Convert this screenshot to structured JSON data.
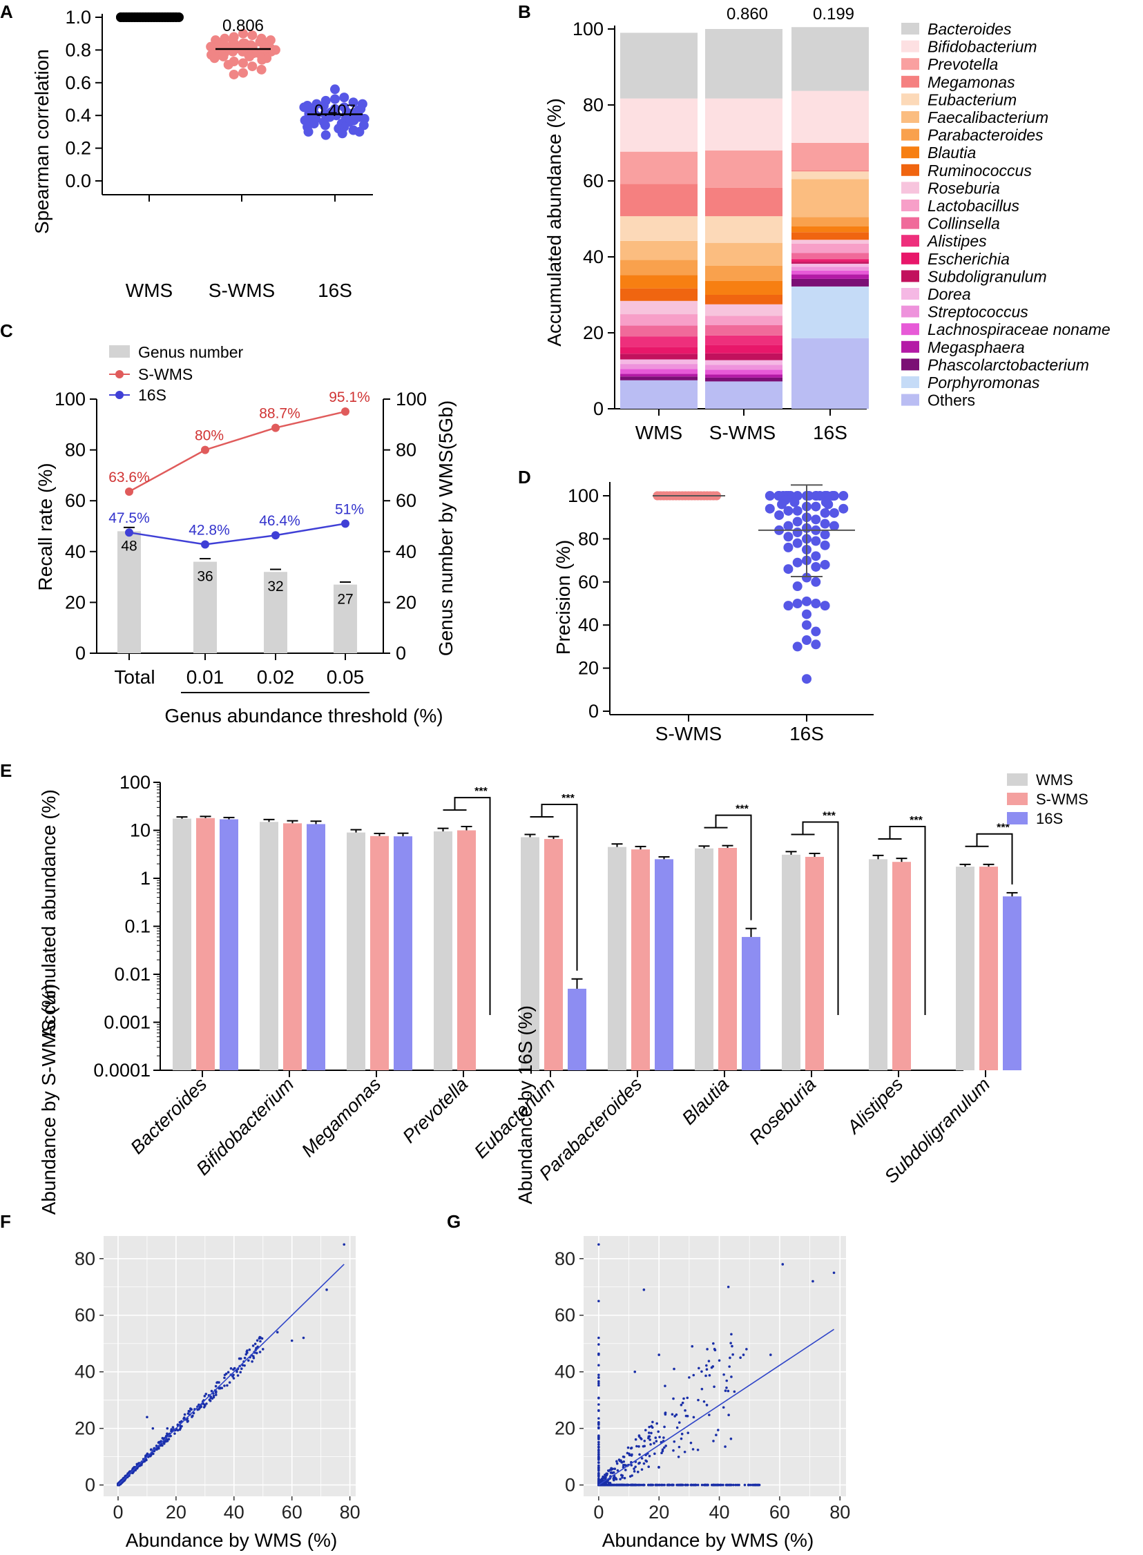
{
  "colors": {
    "wms": "#d3d3d3",
    "swms": "#f4a09f",
    "s16": "#8d8df2",
    "swms_dot": "#f08585",
    "s16_dot": "#5657e6",
    "recall_swms": "#e05b5b",
    "recall_16s": "#3f3fd6",
    "recall_swms_text": "#d03434",
    "recall_16s_text": "#3333cc",
    "scatter_dot": "#1a2fa8",
    "scatter_bg": "#e8e8e8"
  },
  "panel_labels": [
    "A",
    "B",
    "C",
    "D",
    "E",
    "F",
    "G"
  ],
  "chart_data": [
    {
      "panel": "A",
      "type": "scatter",
      "ylabel": "Spearman correlation",
      "categories": [
        "WMS",
        "S-WMS",
        "16S"
      ],
      "yticks": [
        "0.0",
        "0.2",
        "0.4",
        "0.6",
        "0.8",
        "1.0"
      ],
      "ylim": [
        0,
        1.0
      ],
      "means": [
        1.0,
        0.806,
        0.407
      ],
      "annotations": [
        "",
        "0.806",
        "0.407"
      ],
      "swms_values": [
        0.9,
        0.89,
        0.88,
        0.87,
        0.87,
        0.86,
        0.86,
        0.85,
        0.85,
        0.85,
        0.84,
        0.84,
        0.84,
        0.83,
        0.83,
        0.83,
        0.83,
        0.82,
        0.82,
        0.82,
        0.82,
        0.81,
        0.81,
        0.81,
        0.81,
        0.81,
        0.8,
        0.8,
        0.8,
        0.8,
        0.8,
        0.79,
        0.79,
        0.79,
        0.79,
        0.78,
        0.78,
        0.78,
        0.77,
        0.77,
        0.77,
        0.76,
        0.76,
        0.75,
        0.75,
        0.74,
        0.73,
        0.72,
        0.71,
        0.7,
        0.68,
        0.66,
        0.65
      ],
      "s16_values": [
        0.56,
        0.51,
        0.5,
        0.49,
        0.48,
        0.47,
        0.47,
        0.46,
        0.46,
        0.45,
        0.45,
        0.44,
        0.44,
        0.44,
        0.43,
        0.43,
        0.43,
        0.42,
        0.42,
        0.42,
        0.42,
        0.41,
        0.41,
        0.41,
        0.41,
        0.4,
        0.4,
        0.4,
        0.4,
        0.39,
        0.39,
        0.39,
        0.39,
        0.38,
        0.38,
        0.38,
        0.37,
        0.37,
        0.37,
        0.36,
        0.36,
        0.35,
        0.35,
        0.34,
        0.34,
        0.33,
        0.33,
        0.32,
        0.31,
        0.3,
        0.3,
        0.29,
        0.28
      ],
      "wms_values": [
        1,
        1,
        1,
        1,
        1,
        1,
        1,
        1,
        1,
        1,
        1,
        1,
        1,
        1,
        1,
        1,
        1,
        1,
        1,
        1,
        1,
        1,
        1,
        1,
        1,
        1,
        1,
        1,
        1,
        1,
        1,
        1,
        1,
        1,
        1,
        1,
        1,
        1,
        1,
        1,
        1,
        1,
        1
      ]
    },
    {
      "panel": "B",
      "type": "bar",
      "stacked": true,
      "ylabel": "Accumulated abundance (%)",
      "categories": [
        "WMS",
        "S-WMS",
        "16S"
      ],
      "annotations": [
        "",
        "0.860",
        "0.199"
      ],
      "yticks": [
        "0",
        "20",
        "40",
        "60",
        "80",
        "100"
      ],
      "ylim": [
        0,
        100
      ],
      "legend": [
        "Bacteroides",
        "Bifidobacterium",
        "Prevotella",
        "Megamonas",
        "Eubacterium",
        "Faecalibacterium",
        "Parabacteroides",
        "Blautia",
        "Ruminococcus",
        "Roseburia",
        "Lactobacillus",
        "Collinsella",
        "Alistipes",
        "Escherichia",
        "Subdoligranulum",
        "Dorea",
        "Streptococcus",
        "Lachnospiraceae noname",
        "Megasphaera",
        "Phascolarctobacterium",
        "Porphyromonas",
        "Others"
      ],
      "legend_italic": [
        true,
        true,
        true,
        true,
        true,
        true,
        true,
        true,
        true,
        true,
        true,
        true,
        true,
        true,
        true,
        true,
        true,
        true,
        true,
        true,
        true,
        false
      ],
      "segment_colors": [
        "#d3d3d3",
        "#fde0e2",
        "#f9a0a0",
        "#f58080",
        "#fcd9b8",
        "#fbbd80",
        "#f9a14d",
        "#f77f12",
        "#f06510",
        "#f7c4dd",
        "#f79fc8",
        "#f06a9a",
        "#ee2f7c",
        "#e8176a",
        "#c2115d",
        "#f5b8e4",
        "#ee93dc",
        "#e75ad7",
        "#b41aa6",
        "#7b0f75",
        "#c5dbf7",
        "#babdf3"
      ],
      "series_values_bottom_to_top": {
        "WMS": {
          "Others": 7.5,
          "Porphyromonas": 0,
          "Phascolarctobacterium": 1.0,
          "Megasphaera": 0.7,
          "Lachnospiraceae noname": 1.3,
          "Streptococcus": 1.3,
          "Dorea": 1.2,
          "Subdoligranulum": 1.5,
          "Escherichia": 1.8,
          "Alistipes": 2.7,
          "Collinsella": 2.9,
          "Lactobacillus": 3.0,
          "Roseburia": 3.5,
          "Ruminococcus": 3.3,
          "Blautia": 3.5,
          "Parabacteroides": 4.0,
          "Faecalibacterium": 5.0,
          "Eubacterium": 6.5,
          "Megamonas": 8.5,
          "Prevotella": 8.5,
          "Bifidobacterium": 14.0,
          "Bacteroides": 17.3
        },
        "S-WMS": {
          "Others": 7.2,
          "Porphyromonas": 0,
          "Phascolarctobacterium": 1.0,
          "Megasphaera": 0.8,
          "Lachnospiraceae noname": 1.3,
          "Streptococcus": 1.3,
          "Dorea": 1.2,
          "Subdoligranulum": 1.8,
          "Escherichia": 2.2,
          "Alistipes": 2.5,
          "Collinsella": 2.7,
          "Lactobacillus": 2.5,
          "Roseburia": 3.0,
          "Ruminococcus": 2.5,
          "Blautia": 3.7,
          "Parabacteroides": 4.0,
          "Faecalibacterium": 6.0,
          "Eubacterium": 7.0,
          "Megamonas": 7.5,
          "Prevotella": 9.8,
          "Bifidobacterium": 13.7,
          "Bacteroides": 18.3
        },
        "16S": {
          "Others": 18.6,
          "Porphyromonas": 13.6,
          "Phascolarctobacterium": 2.0,
          "Megasphaera": 1.2,
          "Lachnospiraceae noname": 1.0,
          "Streptococcus": 1.0,
          "Dorea": 0.8,
          "Subdoligranulum": 0.5,
          "Escherichia": 0.5,
          "Alistipes": 0.3,
          "Collinsella": 1.5,
          "Lactobacillus": 2.5,
          "Roseburia": 1.0,
          "Ruminococcus": 2.0,
          "Blautia": 1.5,
          "Parabacteroides": 2.5,
          "Faecalibacterium": 10.0,
          "Eubacterium": 2.0,
          "Megamonas": 0.3,
          "Prevotella": 7.2,
          "Bifidobacterium": 13.7,
          "Bacteroides": 16.8
        }
      }
    },
    {
      "panel": "C",
      "type": "line",
      "ylabel": "Recall rate (%)",
      "y2label": "Genus number by WMS(5Gb)",
      "xlabel": "Genus abundance threshold (%)",
      "categories": [
        "Total",
        "0.01",
        "0.02",
        "0.05"
      ],
      "yticks": [
        "0",
        "20",
        "40",
        "60",
        "80",
        "100"
      ],
      "ylim": [
        0,
        100
      ],
      "legend": [
        "Genus number",
        "S-WMS",
        "16S"
      ],
      "series": [
        {
          "name": "S-WMS",
          "values": [
            63.6,
            80,
            88.7,
            95.1
          ],
          "labels": [
            "63.6%",
            "80%",
            "88.7%",
            "95.1%"
          ]
        },
        {
          "name": "16S",
          "values": [
            47.5,
            42.8,
            46.4,
            51
          ],
          "labels": [
            "47.5%",
            "42.8%",
            "46.4%",
            "51%"
          ]
        }
      ],
      "bars": {
        "name": "Genus number",
        "values": [
          48,
          36,
          32,
          27
        ],
        "errors": [
          1.5,
          1.2,
          1.0,
          1.0
        ],
        "labels": [
          "48",
          "36",
          "32",
          "27"
        ]
      }
    },
    {
      "panel": "D",
      "type": "scatter",
      "ylabel": "Precision (%)",
      "categories": [
        "S-WMS",
        "16S"
      ],
      "yticks": [
        "0",
        "20",
        "40",
        "60",
        "80",
        "100"
      ],
      "ylim": [
        0,
        100
      ],
      "swms_values": [
        100,
        100,
        100,
        100,
        100,
        100,
        100,
        100,
        100,
        100,
        100,
        100,
        100,
        100,
        100,
        100,
        100,
        100,
        100,
        100,
        100,
        100,
        100,
        100,
        100,
        100,
        100,
        100,
        100,
        100,
        100,
        100,
        100,
        100,
        100,
        100,
        100,
        100,
        100,
        100
      ],
      "s16_values": [
        100,
        100,
        100,
        100,
        100,
        100,
        100,
        100,
        100,
        100,
        100,
        100,
        100,
        100,
        100,
        100,
        100,
        100,
        98,
        97,
        97,
        96,
        96,
        95,
        95,
        94,
        94,
        93,
        93,
        92,
        92,
        91,
        90,
        89,
        88,
        87,
        86,
        86,
        85,
        84,
        84,
        83,
        82,
        81,
        80,
        79,
        78,
        77,
        76,
        75,
        72,
        70,
        69,
        68,
        67,
        66,
        62,
        60,
        58,
        51,
        50,
        50,
        49,
        49,
        45,
        40,
        37,
        33,
        31,
        30,
        15
      ],
      "mean_sd": {
        "mean": 84,
        "upper": 105,
        "lower": 62.5
      }
    },
    {
      "panel": "E",
      "type": "bar",
      "ylabel": "Accumulated abundance (%)",
      "yscale": "log",
      "yticks": [
        "0.0001",
        "0.001",
        "0.01",
        "0.1",
        "1",
        "10",
        "100"
      ],
      "categories": [
        "Bacteroides",
        "Bifidobacterium",
        "Megamonas",
        "Prevotella",
        "Eubacterium",
        "Parabacteroides",
        "Blautia",
        "Roseburia",
        "Alistipes",
        "Subdoligranulum"
      ],
      "legend": [
        "WMS",
        "S-WMS",
        "16S"
      ],
      "series": [
        {
          "name": "WMS",
          "values": [
            17.5,
            15.0,
            9.0,
            9.5,
            7.2,
            4.5,
            4.2,
            3.1,
            2.5,
            1.75
          ],
          "errors": [
            1.5,
            1.8,
            1.3,
            1.5,
            1.0,
            0.7,
            0.5,
            0.5,
            0.5,
            0.2
          ]
        },
        {
          "name": "S-WMS",
          "values": [
            18.0,
            14.0,
            7.6,
            10.0,
            6.6,
            4.0,
            4.3,
            2.8,
            2.2,
            1.75
          ],
          "errors": [
            1.5,
            1.8,
            1.0,
            2.0,
            0.8,
            0.6,
            0.5,
            0.5,
            0.4,
            0.2
          ]
        },
        {
          "name": "16S",
          "values": [
            17.0,
            13.5,
            7.5,
            0.00011,
            0.005,
            2.5,
            0.06,
            0.00011,
            0.00011,
            0.42
          ],
          "errors": [
            1.5,
            2.0,
            1.2,
            0,
            0.003,
            0.3,
            0.03,
            0,
            0,
            0.08
          ]
        }
      ],
      "significance": [
        "",
        "",
        "",
        "***",
        "***",
        "",
        "***",
        "***",
        "***",
        "***"
      ]
    },
    {
      "panel": "F",
      "type": "scatter",
      "xlabel": "Abundance by WMS (%)",
      "ylabel": "Abundance by S-WMS (%)",
      "xticks": [
        "0",
        "20",
        "40",
        "60",
        "80"
      ],
      "yticks": [
        "0",
        "20",
        "40",
        "60",
        "80"
      ],
      "xlim": [
        -5,
        82
      ],
      "ylim": [
        -4,
        88
      ],
      "fit": [
        [
          0,
          0
        ],
        [
          78,
          78
        ]
      ],
      "highlight_points": [
        [
          78,
          85
        ],
        [
          72,
          69
        ],
        [
          60,
          51
        ],
        [
          64,
          52
        ],
        [
          55,
          54
        ],
        [
          49,
          47
        ],
        [
          47,
          47
        ],
        [
          45,
          44
        ],
        [
          50,
          48
        ],
        [
          41,
          40
        ],
        [
          42,
          42
        ],
        [
          33,
          31
        ],
        [
          30,
          28
        ],
        [
          10,
          24
        ],
        [
          17,
          20
        ],
        [
          12,
          20
        ]
      ]
    },
    {
      "panel": "G",
      "type": "scatter",
      "xlabel": "Abundance by WMS (%)",
      "ylabel": "Abundance by 16S (%)",
      "xticks": [
        "0",
        "20",
        "40",
        "60",
        "80"
      ],
      "yticks": [
        "0",
        "20",
        "40",
        "60",
        "80"
      ],
      "xlim": [
        -5,
        82
      ],
      "ylim": [
        -4,
        88
      ],
      "fit": [
        [
          0,
          0
        ],
        [
          78,
          55
        ]
      ],
      "highlight_points": [
        [
          0,
          85
        ],
        [
          0,
          65
        ],
        [
          0,
          52
        ],
        [
          78,
          75
        ],
        [
          71,
          72
        ],
        [
          61,
          78
        ],
        [
          43,
          70
        ],
        [
          15,
          69
        ],
        [
          47,
          45
        ],
        [
          48,
          46
        ],
        [
          31,
          49
        ],
        [
          38,
          50
        ],
        [
          36,
          48
        ],
        [
          40,
          44
        ],
        [
          25,
          41
        ],
        [
          20,
          46
        ],
        [
          12,
          40
        ],
        [
          22,
          35
        ],
        [
          30,
          38
        ],
        [
          33,
          30
        ],
        [
          45,
          33
        ],
        [
          49,
          48
        ],
        [
          57,
          46
        ]
      ]
    }
  ]
}
